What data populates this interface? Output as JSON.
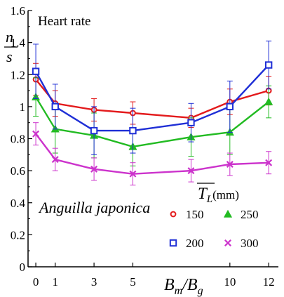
{
  "chart_data": {
    "type": "line",
    "title": "Heart rate",
    "ylabel_top": "n",
    "ylabel_bottom": "s",
    "xlabel": {
      "main": "B",
      "sub1": "m",
      "slash": "/B",
      "sub2": "g"
    },
    "species": "Anguilla japonica",
    "legend_title": {
      "main": "T",
      "sub": "L",
      "unit": "(mm)"
    },
    "legend_placement": "lower-right",
    "xlim": [
      -0.4,
      12.5
    ],
    "ylim": [
      0,
      1.6
    ],
    "x_ticks": [
      0,
      1,
      3,
      5,
      10,
      12
    ],
    "y_ticks": [
      0,
      0.2,
      0.4,
      0.6,
      0.8,
      1,
      1.2,
      1.4,
      1.6
    ],
    "x_positions": [
      0,
      1,
      3,
      5,
      8,
      10,
      12
    ],
    "grid": false,
    "series": [
      {
        "name": "150",
        "color": "#e31a1c",
        "marker": "circle",
        "y": [
          1.17,
          1.02,
          0.98,
          0.96,
          0.93,
          1.03,
          1.1
        ],
        "err": [
          0.1,
          0.08,
          0.07,
          0.07,
          0.06,
          0.08,
          0.09
        ]
      },
      {
        "name": "250",
        "color": "#22bb22",
        "marker": "triangle",
        "y": [
          1.06,
          0.86,
          0.82,
          0.75,
          0.81,
          0.84,
          1.03
        ],
        "err": [
          0.12,
          0.15,
          0.14,
          0.12,
          0.12,
          0.14,
          0.1
        ]
      },
      {
        "name": "200",
        "color": "#1f2fd6",
        "marker": "square",
        "y": [
          1.22,
          1.0,
          0.85,
          0.85,
          0.9,
          1.0,
          1.26
        ],
        "err": [
          0.17,
          0.14,
          0.15,
          0.14,
          0.12,
          0.16,
          0.15
        ]
      },
      {
        "name": "300",
        "color": "#cc33cc",
        "marker": "x",
        "y": [
          0.83,
          0.67,
          0.61,
          0.58,
          0.6,
          0.64,
          0.65
        ],
        "err": [
          0.07,
          0.07,
          0.07,
          0.07,
          0.07,
          0.07,
          0.07
        ]
      }
    ]
  }
}
